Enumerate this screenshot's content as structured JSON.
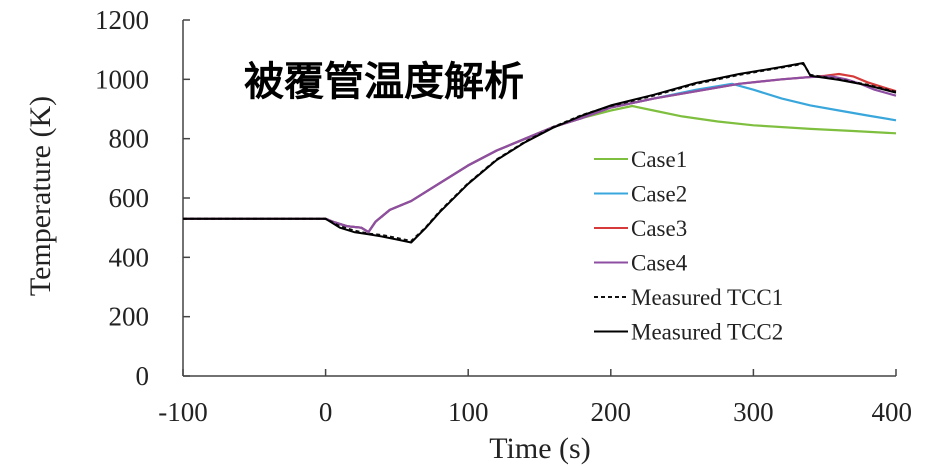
{
  "chart_data": {
    "type": "line",
    "title": "被覆管温度解析",
    "xlabel": "Time (s)",
    "ylabel": "Temperature (K)",
    "xlim": [
      -100,
      400
    ],
    "ylim": [
      0,
      1200
    ],
    "xticks": [
      -100,
      0,
      100,
      200,
      300,
      400
    ],
    "yticks": [
      0,
      200,
      400,
      600,
      800,
      1000,
      1200
    ],
    "grid": false,
    "legend_position": "right",
    "series": [
      {
        "name": "Case1",
        "color": "#7fbf3f",
        "dash": "solid",
        "points": [
          [
            -100,
            530
          ],
          [
            0,
            530
          ],
          [
            5,
            520
          ],
          [
            15,
            505
          ],
          [
            25,
            500
          ],
          [
            30,
            485
          ],
          [
            35,
            520
          ],
          [
            45,
            560
          ],
          [
            60,
            590
          ],
          [
            80,
            650
          ],
          [
            100,
            710
          ],
          [
            120,
            760
          ],
          [
            140,
            800
          ],
          [
            160,
            840
          ],
          [
            180,
            870
          ],
          [
            200,
            895
          ],
          [
            215,
            910
          ],
          [
            230,
            895
          ],
          [
            250,
            875
          ],
          [
            275,
            858
          ],
          [
            300,
            845
          ],
          [
            340,
            833
          ],
          [
            370,
            826
          ],
          [
            400,
            818
          ]
        ]
      },
      {
        "name": "Case2",
        "color": "#3aa7dc",
        "dash": "solid",
        "points": [
          [
            -100,
            530
          ],
          [
            0,
            530
          ],
          [
            5,
            520
          ],
          [
            15,
            505
          ],
          [
            25,
            500
          ],
          [
            30,
            485
          ],
          [
            35,
            520
          ],
          [
            45,
            560
          ],
          [
            60,
            590
          ],
          [
            80,
            650
          ],
          [
            100,
            710
          ],
          [
            120,
            760
          ],
          [
            140,
            800
          ],
          [
            160,
            840
          ],
          [
            180,
            870
          ],
          [
            200,
            905
          ],
          [
            230,
            935
          ],
          [
            260,
            965
          ],
          [
            285,
            985
          ],
          [
            300,
            965
          ],
          [
            320,
            935
          ],
          [
            340,
            912
          ],
          [
            360,
            895
          ],
          [
            380,
            878
          ],
          [
            400,
            862
          ]
        ]
      },
      {
        "name": "Case3",
        "color": "#d63a3a",
        "dash": "solid",
        "points": [
          [
            -100,
            530
          ],
          [
            0,
            530
          ],
          [
            5,
            520
          ],
          [
            15,
            505
          ],
          [
            25,
            500
          ],
          [
            30,
            485
          ],
          [
            35,
            520
          ],
          [
            45,
            560
          ],
          [
            60,
            590
          ],
          [
            80,
            650
          ],
          [
            100,
            710
          ],
          [
            120,
            760
          ],
          [
            140,
            800
          ],
          [
            160,
            840
          ],
          [
            180,
            870
          ],
          [
            200,
            905
          ],
          [
            230,
            935
          ],
          [
            260,
            960
          ],
          [
            290,
            985
          ],
          [
            320,
            1000
          ],
          [
            340,
            1008
          ],
          [
            350,
            1012
          ],
          [
            360,
            1018
          ],
          [
            370,
            1010
          ],
          [
            380,
            990
          ],
          [
            390,
            975
          ],
          [
            400,
            960
          ]
        ]
      },
      {
        "name": "Case4",
        "color": "#8e4fa3",
        "dash": "solid",
        "points": [
          [
            -100,
            530
          ],
          [
            0,
            530
          ],
          [
            5,
            520
          ],
          [
            15,
            505
          ],
          [
            25,
            500
          ],
          [
            30,
            485
          ],
          [
            35,
            520
          ],
          [
            45,
            560
          ],
          [
            60,
            590
          ],
          [
            80,
            650
          ],
          [
            100,
            710
          ],
          [
            120,
            760
          ],
          [
            140,
            800
          ],
          [
            160,
            840
          ],
          [
            180,
            870
          ],
          [
            200,
            905
          ],
          [
            230,
            935
          ],
          [
            260,
            960
          ],
          [
            290,
            985
          ],
          [
            320,
            1000
          ],
          [
            340,
            1008
          ],
          [
            355,
            1010
          ],
          [
            365,
            1000
          ],
          [
            375,
            985
          ],
          [
            385,
            965
          ],
          [
            400,
            945
          ]
        ]
      },
      {
        "name": "Measured TCC1",
        "color": "#111111",
        "dash": "dashed",
        "points": [
          [
            -100,
            530
          ],
          [
            0,
            530
          ],
          [
            10,
            505
          ],
          [
            20,
            490
          ],
          [
            30,
            480
          ],
          [
            40,
            475
          ],
          [
            50,
            465
          ],
          [
            60,
            455
          ],
          [
            70,
            500
          ],
          [
            80,
            555
          ],
          [
            100,
            650
          ],
          [
            120,
            730
          ],
          [
            140,
            790
          ],
          [
            160,
            840
          ],
          [
            180,
            880
          ],
          [
            200,
            910
          ],
          [
            230,
            945
          ],
          [
            260,
            985
          ],
          [
            290,
            1015
          ],
          [
            320,
            1040
          ],
          [
            335,
            1052
          ],
          [
            340,
            1015
          ],
          [
            360,
            1000
          ],
          [
            380,
            982
          ],
          [
            400,
            958
          ]
        ]
      },
      {
        "name": "Measured TCC2",
        "color": "#000000",
        "dash": "solid",
        "points": [
          [
            -100,
            530
          ],
          [
            0,
            530
          ],
          [
            10,
            500
          ],
          [
            20,
            485
          ],
          [
            30,
            478
          ],
          [
            40,
            470
          ],
          [
            50,
            460
          ],
          [
            60,
            450
          ],
          [
            70,
            498
          ],
          [
            80,
            552
          ],
          [
            100,
            648
          ],
          [
            120,
            728
          ],
          [
            140,
            788
          ],
          [
            160,
            838
          ],
          [
            180,
            878
          ],
          [
            200,
            912
          ],
          [
            230,
            948
          ],
          [
            260,
            988
          ],
          [
            290,
            1018
          ],
          [
            320,
            1042
          ],
          [
            335,
            1055
          ],
          [
            340,
            1012
          ],
          [
            360,
            998
          ],
          [
            380,
            980
          ],
          [
            400,
            955
          ]
        ]
      }
    ]
  }
}
